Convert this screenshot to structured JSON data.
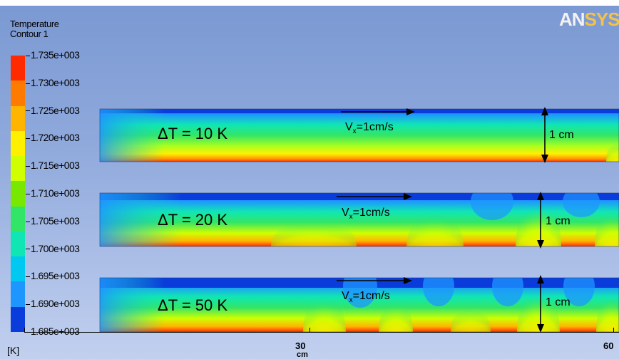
{
  "legend": {
    "title": "Temperature",
    "subtitle": "Contour 1",
    "unit": "[K]",
    "ticks": [
      "1.735e+003",
      "1.730e+003",
      "1.725e+003",
      "1.720e+003",
      "1.715e+003",
      "1.710e+003",
      "1.705e+003",
      "1.700e+003",
      "1.695e+003",
      "1.690e+003",
      "1.685e+003"
    ],
    "colors": [
      "#ff2a00",
      "#ff7a00",
      "#ffb400",
      "#fff000",
      "#d0ff00",
      "#78e800",
      "#33e566",
      "#10e6b4",
      "#00c8f0",
      "#1e96ff",
      "#0a3cdc"
    ]
  },
  "logo": {
    "prefix": "AN",
    "suffix": "SYS"
  },
  "panels": [
    {
      "delta_t": "ΔT = 10 K",
      "velocity_main": "V",
      "velocity_sub": "x",
      "velocity_value": "=1cm/s",
      "height_label": "1 cm"
    },
    {
      "delta_t": "ΔT = 20 K",
      "velocity_main": "V",
      "velocity_sub": "x",
      "velocity_value": "=1cm/s",
      "height_label": "1 cm"
    },
    {
      "delta_t": "ΔT = 50 K",
      "velocity_main": "V",
      "velocity_sub": "x",
      "velocity_value": "=1cm/s",
      "height_label": "1 cm"
    }
  ],
  "axis": {
    "label_30": "30",
    "label_30_unit": "cm",
    "label_60": "60"
  }
}
